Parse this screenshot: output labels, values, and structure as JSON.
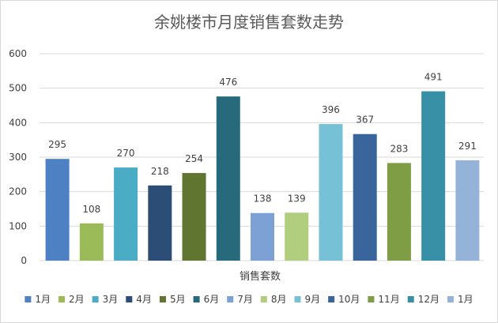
{
  "chart_data": {
    "type": "bar",
    "title": "余姚楼市月度销售套数走势",
    "xlabel": "销售套数",
    "ylabel": "",
    "ylim": [
      0,
      600
    ],
    "yticks": [
      0,
      100,
      200,
      300,
      400,
      500,
      600
    ],
    "grid": true,
    "legend_position": "bottom",
    "series": [
      {
        "name": "1月",
        "value": 295,
        "color": "#4e81c4"
      },
      {
        "name": "2月",
        "value": 108,
        "color": "#9bbb59"
      },
      {
        "name": "3月",
        "value": 270,
        "color": "#4bacc6"
      },
      {
        "name": "4月",
        "value": 218,
        "color": "#2c4d75"
      },
      {
        "name": "5月",
        "value": 254,
        "color": "#5f7530"
      },
      {
        "name": "6月",
        "value": 476,
        "color": "#276a7c"
      },
      {
        "name": "7月",
        "value": 138,
        "color": "#7da1d4"
      },
      {
        "name": "8月",
        "value": 139,
        "color": "#b1cd7e"
      },
      {
        "name": "9月",
        "value": 396,
        "color": "#77c1d6"
      },
      {
        "name": "10月",
        "value": 367,
        "color": "#3a659c"
      },
      {
        "name": "11月",
        "value": 283,
        "color": "#7e9d44"
      },
      {
        "name": "12月",
        "value": 491,
        "color": "#3790a6"
      },
      {
        "name": "1月",
        "value": 291,
        "color": "#95b3d8"
      }
    ]
  }
}
